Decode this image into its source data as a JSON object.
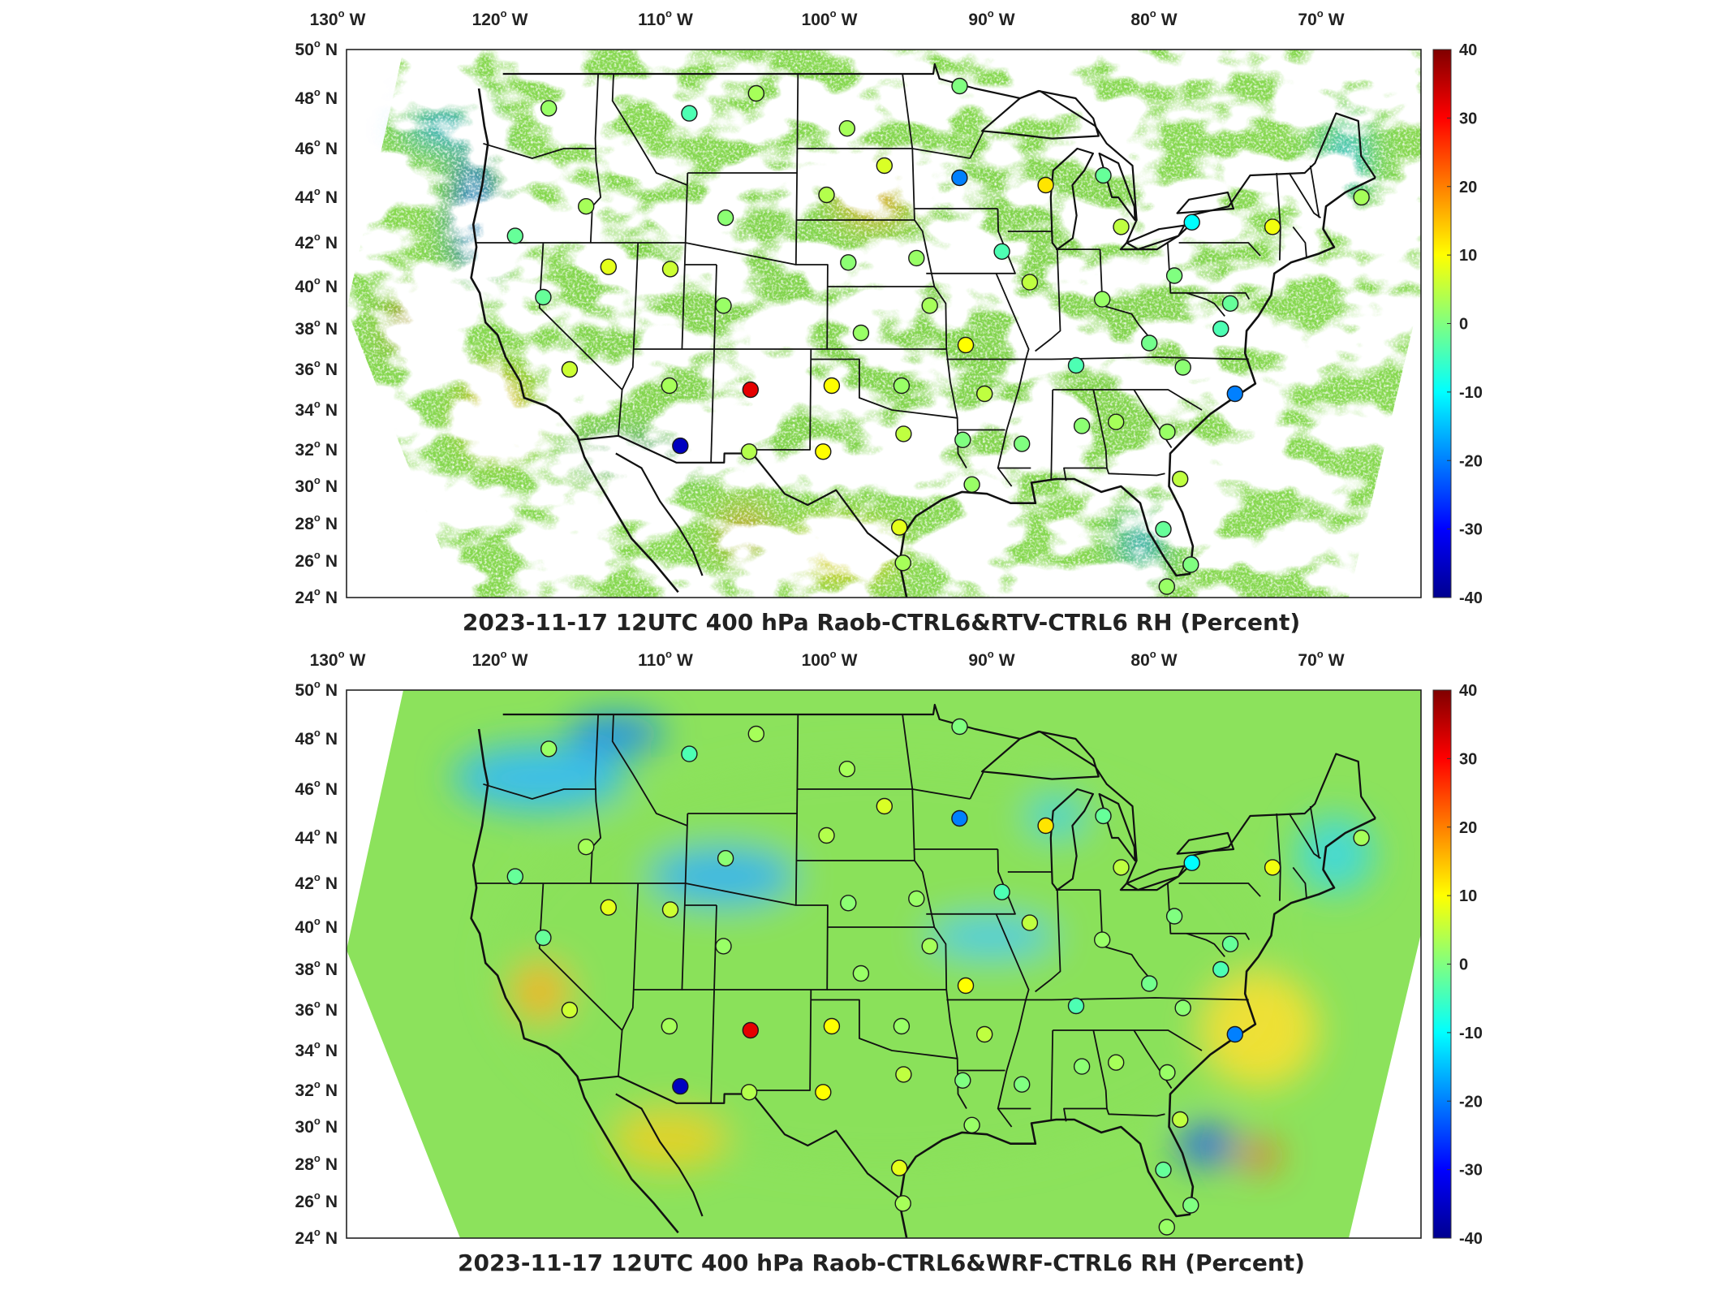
{
  "panels": [
    {
      "title": "2023-11-17 12UTC 400 hPa Raob-CTRL6&RTV-CTRL6 RH (Percent)",
      "background_mode": "patchy"
    },
    {
      "title": "2023-11-17 12UTC 400 hPa Raob-CTRL6&WRF-CTRL6 RH (Percent)",
      "background_mode": "full"
    }
  ],
  "lon_labels": [
    {
      "deg": "130",
      "dir": "W"
    },
    {
      "deg": "120",
      "dir": "W"
    },
    {
      "deg": "110",
      "dir": "W"
    },
    {
      "deg": "100",
      "dir": "W"
    },
    {
      "deg": "90",
      "dir": "W"
    },
    {
      "deg": "80",
      "dir": "W"
    },
    {
      "deg": "70",
      "dir": "W"
    }
  ],
  "lat_labels": [
    {
      "deg": "50",
      "dir": "N"
    },
    {
      "deg": "48",
      "dir": "N"
    },
    {
      "deg": "46",
      "dir": "N"
    },
    {
      "deg": "44",
      "dir": "N"
    },
    {
      "deg": "42",
      "dir": "N"
    },
    {
      "deg": "40",
      "dir": "N"
    },
    {
      "deg": "38",
      "dir": "N"
    },
    {
      "deg": "36",
      "dir": "N"
    },
    {
      "deg": "34",
      "dir": "N"
    },
    {
      "deg": "32",
      "dir": "N"
    },
    {
      "deg": "30",
      "dir": "N"
    },
    {
      "deg": "28",
      "dir": "N"
    },
    {
      "deg": "26",
      "dir": "N"
    },
    {
      "deg": "24",
      "dir": "N"
    }
  ],
  "colorbar": {
    "ticks": [
      "40",
      "30",
      "20",
      "10",
      "0",
      "-10",
      "-20",
      "-30",
      "-40"
    ],
    "range": [
      -40,
      40
    ],
    "colormap": "jet"
  },
  "colors": {
    "border": "#111111",
    "frame": "#222222",
    "text": "#222222"
  },
  "stations": [
    {
      "lon": -120.1,
      "lat": 47.6,
      "v": 2
    },
    {
      "lon": -111.0,
      "lat": 47.4,
      "v": -4
    },
    {
      "lon": -106.7,
      "lat": 48.2,
      "v": 3
    },
    {
      "lon": -100.8,
      "lat": 46.8,
      "v": 3
    },
    {
      "lon": -93.5,
      "lat": 48.5,
      "v": 0
    },
    {
      "lon": -98.4,
      "lat": 45.3,
      "v": 7
    },
    {
      "lon": -93.6,
      "lat": 44.8,
      "v": -20
    },
    {
      "lon": -88.1,
      "lat": 44.5,
      "v": 12
    },
    {
      "lon": -84.4,
      "lat": 44.9,
      "v": -2
    },
    {
      "lon": -117.4,
      "lat": 43.6,
      "v": 3
    },
    {
      "lon": -108.5,
      "lat": 43.1,
      "v": 1
    },
    {
      "lon": -102.1,
      "lat": 44.1,
      "v": 4
    },
    {
      "lon": -121.8,
      "lat": 42.3,
      "v": -2
    },
    {
      "lon": -83.4,
      "lat": 42.7,
      "v": 5
    },
    {
      "lon": -78.9,
      "lat": 42.9,
      "v": -10
    },
    {
      "lon": -73.8,
      "lat": 42.7,
      "v": 9
    },
    {
      "lon": -68.0,
      "lat": 44.0,
      "v": 3
    },
    {
      "lon": -115.8,
      "lat": 40.9,
      "v": 8
    },
    {
      "lon": -111.9,
      "lat": 40.8,
      "v": 6
    },
    {
      "lon": -100.7,
      "lat": 41.1,
      "v": 1
    },
    {
      "lon": -96.4,
      "lat": 41.3,
      "v": 2
    },
    {
      "lon": -91.0,
      "lat": 41.6,
      "v": -4
    },
    {
      "lon": -80.2,
      "lat": 40.5,
      "v": 0
    },
    {
      "lon": -119.8,
      "lat": 39.5,
      "v": -2
    },
    {
      "lon": -108.5,
      "lat": 39.1,
      "v": 2
    },
    {
      "lon": -89.3,
      "lat": 40.2,
      "v": 5
    },
    {
      "lon": -95.6,
      "lat": 39.1,
      "v": 3
    },
    {
      "lon": -84.8,
      "lat": 39.4,
      "v": 2
    },
    {
      "lon": -99.9,
      "lat": 37.8,
      "v": 2
    },
    {
      "lon": -82.0,
      "lat": 37.3,
      "v": -1
    },
    {
      "lon": -77.5,
      "lat": 38.0,
      "v": -4
    },
    {
      "lon": -76.8,
      "lat": 39.2,
      "v": -2
    },
    {
      "lon": -93.4,
      "lat": 37.2,
      "v": 10
    },
    {
      "lon": -86.6,
      "lat": 36.2,
      "v": -4
    },
    {
      "lon": -80.0,
      "lat": 36.1,
      "v": 1
    },
    {
      "lon": -117.9,
      "lat": 36.0,
      "v": 6
    },
    {
      "lon": -111.7,
      "lat": 35.2,
      "v": 3
    },
    {
      "lon": -106.7,
      "lat": 35.0,
      "v": 32
    },
    {
      "lon": -101.7,
      "lat": 35.2,
      "v": 10
    },
    {
      "lon": -97.4,
      "lat": 35.2,
      "v": 2
    },
    {
      "lon": -92.3,
      "lat": 34.8,
      "v": 5
    },
    {
      "lon": -76.9,
      "lat": 34.8,
      "v": -20
    },
    {
      "lon": -110.9,
      "lat": 32.2,
      "v": -35
    },
    {
      "lon": -106.7,
      "lat": 31.9,
      "v": 4
    },
    {
      "lon": -102.2,
      "lat": 31.9,
      "v": 10
    },
    {
      "lon": -97.3,
      "lat": 32.8,
      "v": 5
    },
    {
      "lon": -93.7,
      "lat": 32.5,
      "v": 0
    },
    {
      "lon": -90.1,
      "lat": 32.3,
      "v": 0
    },
    {
      "lon": -86.4,
      "lat": 33.2,
      "v": 1
    },
    {
      "lon": -84.3,
      "lat": 33.4,
      "v": 3
    },
    {
      "lon": -81.2,
      "lat": 32.9,
      "v": 2
    },
    {
      "lon": -80.6,
      "lat": 30.4,
      "v": 5
    },
    {
      "lon": -93.2,
      "lat": 30.1,
      "v": 2
    },
    {
      "lon": -97.6,
      "lat": 27.8,
      "v": 8
    },
    {
      "lon": -81.8,
      "lat": 27.7,
      "v": -2
    },
    {
      "lon": -97.4,
      "lat": 25.9,
      "v": 3
    },
    {
      "lon": -80.3,
      "lat": 25.8,
      "v": 0
    },
    {
      "lon": -81.8,
      "lat": 24.6,
      "v": 2
    }
  ]
}
